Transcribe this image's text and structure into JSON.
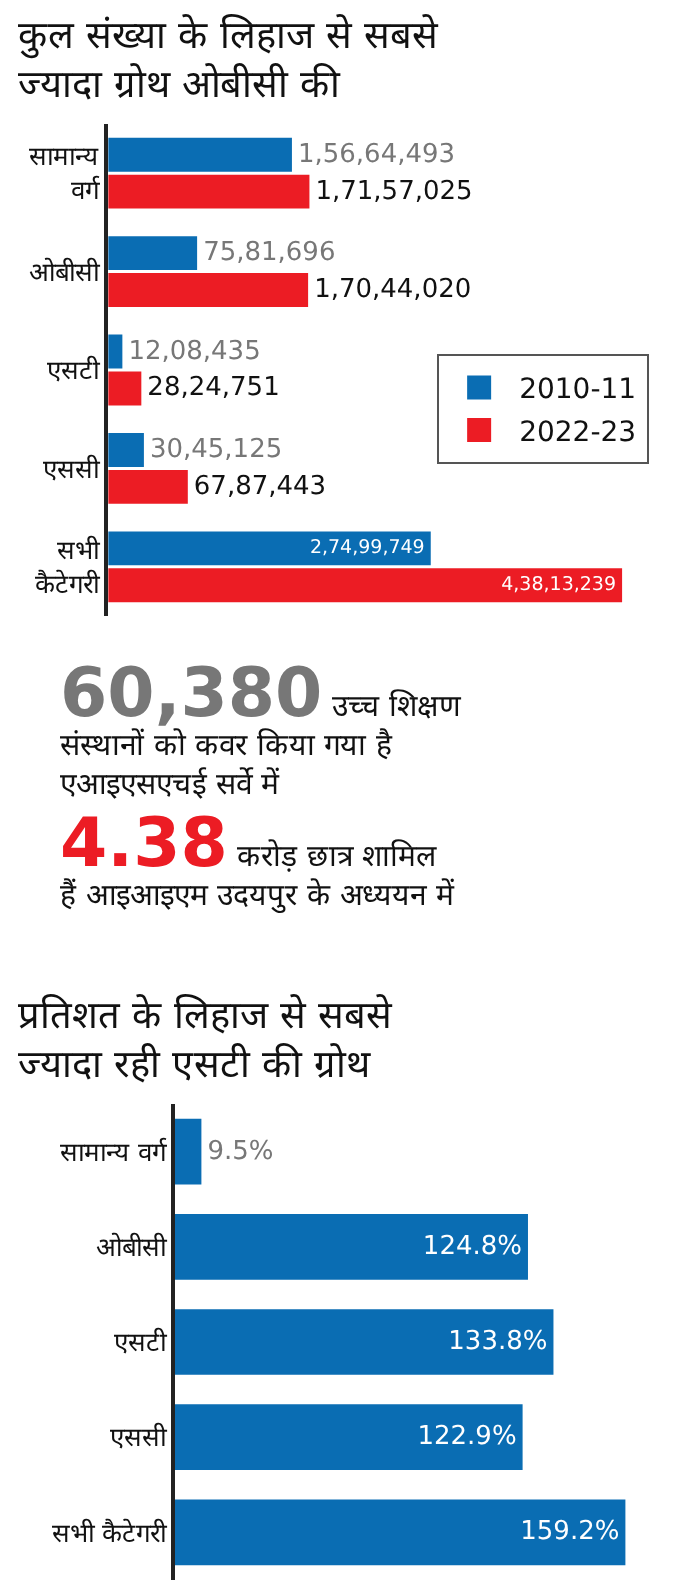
{
  "chart_data": [
    {
      "type": "bar",
      "orientation": "horizontal",
      "title": "कुल संख्या के लिहाज से सबसे ज्यादा ग्रोथ ओबीसी की",
      "categories": [
        "सामान्य वर्ग",
        "ओबीसी",
        "एसटी",
        "एससी",
        "सभी कैटेगरी"
      ],
      "legend": "right",
      "series": [
        {
          "name": "2010-11",
          "color": "#0a6db3",
          "values": [
            15664493,
            7581696,
            1208435,
            3045125,
            27499749
          ],
          "value_labels": [
            "1,56,64,493",
            "75,81,696",
            "12,08,435",
            "30,45,125",
            "2,74,99,749"
          ]
        },
        {
          "name": "2022-23",
          "color": "#ec1c24",
          "values": [
            17157025,
            17044020,
            2824751,
            6787443,
            43813239
          ],
          "value_labels": [
            "1,71,57,025",
            "1,70,44,020",
            "28,24,751",
            "67,87,443",
            "4,38,13,239"
          ]
        }
      ]
    },
    {
      "type": "other",
      "annotations": [
        "60,380",
        "उच्च शिक्षण संस्थानों को कवर किया गया है एआइएसएचई सर्वे में",
        "4.38",
        "करोड़ छात्र शामिल हैं आइआइएम उदयपुर के अध्ययन में"
      ]
    },
    {
      "type": "bar",
      "orientation": "horizontal",
      "title": "प्रतिशत के लिहाज से सबसे ज्यादा रही एसटी की ग्रोथ",
      "categories": [
        "सामान्य वर्ग",
        "ओबीसी",
        "एसटी",
        "एससी",
        "सभी कैटेगरी"
      ],
      "legend": false,
      "series": [
        {
          "color": "#0a6db3",
          "values": [
            9.5,
            124.8,
            133.8,
            122.9,
            159.2
          ],
          "value_labels": [
            "9.5%",
            "124.8%",
            "133.8%",
            "122.9%",
            "159.2%"
          ]
        }
      ]
    }
  ]
}
